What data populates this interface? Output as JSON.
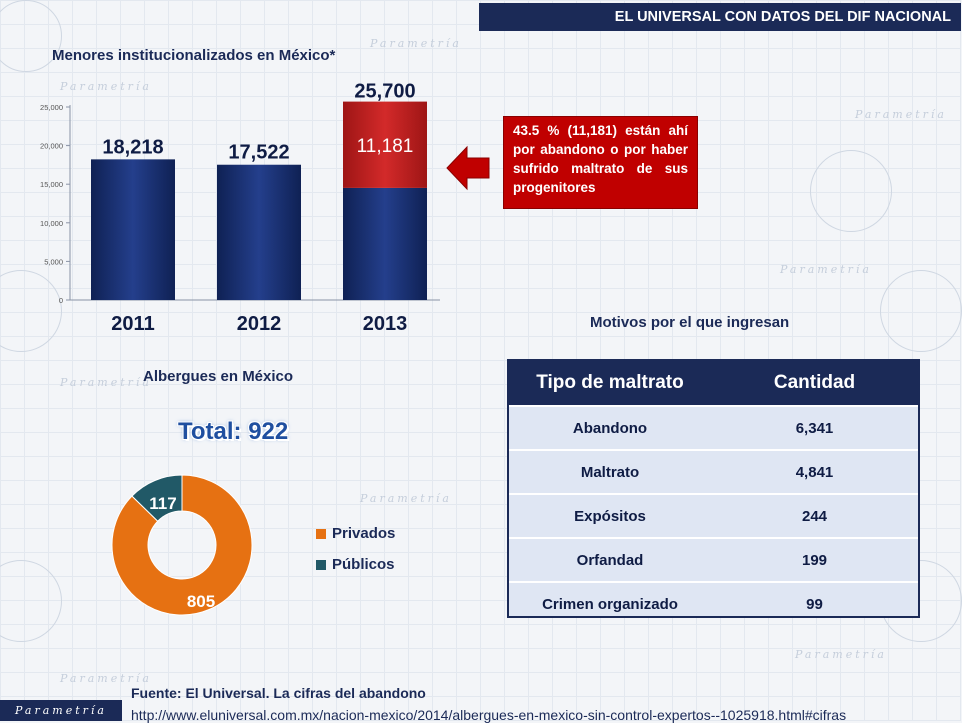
{
  "banner": "EL UNIVERSAL CON DATOS DEL DIF NACIONAL",
  "bar_title": "Menores institucionalizados en México*",
  "callout": "43.5 % (11,181) están ahí por abandono o por haber sufrido maltrato de sus progenitores",
  "motivos_title": "Motivos por el que ingresan",
  "albergues_title": "Albergues en México",
  "total_label": "Total: 922",
  "watermark": "Parametría",
  "logo_text": "Parametría",
  "colors": {
    "navy": "#1b2a57",
    "bar_blue": "#162d6e",
    "red": "#c00000",
    "orange": "#e67112",
    "teal": "#215967"
  },
  "chart_data": [
    {
      "type": "bar",
      "title": "Menores institucionalizados en México*",
      "categories": [
        "2011",
        "2012",
        "2013"
      ],
      "series": [
        {
          "values": [
            18218,
            17522,
            14519
          ]
        },
        {
          "values": [
            0,
            0,
            11181
          ]
        }
      ],
      "totals": [
        18218,
        17522,
        25700
      ],
      "total_labels": [
        "18,218",
        "17,522",
        "25,700"
      ],
      "highlight_label": "11,181",
      "yticks": [
        0,
        5000,
        10000,
        15000,
        20000,
        25000
      ],
      "ytick_labels": [
        "0",
        "5,000",
        "10,000",
        "15,000",
        "20,000",
        "25,000"
      ],
      "ylim": [
        0,
        25000
      ],
      "grid": false
    },
    {
      "type": "pie",
      "title": "Albergues en México",
      "labels": [
        "Privados",
        "Públicos"
      ],
      "values": [
        805,
        117
      ],
      "value_labels": [
        "805",
        "117"
      ],
      "legend": "right"
    },
    {
      "type": "table",
      "title": "Motivos por el que ingresan",
      "columns": [
        "Tipo de maltrato",
        "Cantidad"
      ],
      "rows": [
        [
          "Abandono",
          "6,341"
        ],
        [
          "Maltrato",
          "4,841"
        ],
        [
          "Expósitos",
          "244"
        ],
        [
          "Orfandad",
          "199"
        ],
        [
          "Crimen organizado",
          "99"
        ]
      ]
    }
  ],
  "source": "Fuente: El Universal. La cifras del abandono",
  "url": "http://www.eluniversal.com.mx/nacion-mexico/2014/albergues-en-mexico-sin-control-expertos--1025918.html#cifras"
}
